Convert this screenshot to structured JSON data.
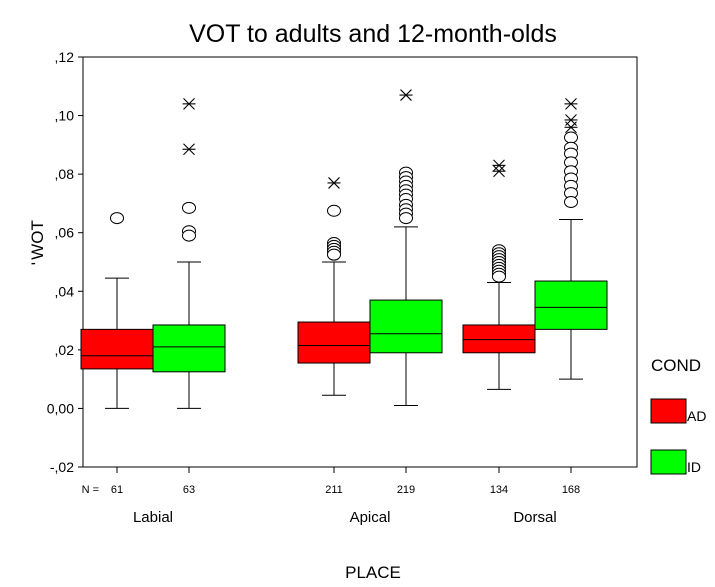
{
  "chart_data": {
    "type": "boxplot",
    "title": "VOT to adults and 12-month-olds",
    "ylabel": "WOT",
    "ylabel_prefix": "'",
    "xlabel": "PLACE",
    "ylim": [
      -0.02,
      0.12
    ],
    "yticks": [
      {
        "value": 0.12,
        "label": ",12"
      },
      {
        "value": 0.1,
        "label": ",10"
      },
      {
        "value": 0.08,
        "label": ",08"
      },
      {
        "value": 0.06,
        "label": ",06"
      },
      {
        "value": 0.04,
        "label": ",04"
      },
      {
        "value": 0.02,
        "label": ",02"
      },
      {
        "value": 0.0,
        "label": "0,00"
      },
      {
        "value": -0.02,
        "label": "-,02"
      }
    ],
    "n_label": "N =",
    "categories": [
      "Labial",
      "Apical",
      "Dorsal"
    ],
    "legend": {
      "title": "COND",
      "position": "right",
      "entries": [
        {
          "label": "AD",
          "color": "#ff0000"
        },
        {
          "label": "ID",
          "color": "#00ff00"
        }
      ]
    },
    "series": [
      {
        "name": "AD",
        "color": "#ff0000",
        "boxes": [
          {
            "category": "Labial",
            "n": "61",
            "min": 0.0,
            "q1": 0.0135,
            "median": 0.018,
            "q3": 0.027,
            "max": 0.0445,
            "outliers": [
              0.065
            ],
            "extremes": []
          },
          {
            "category": "Apical",
            "n": "211",
            "min": 0.0045,
            "q1": 0.0155,
            "median": 0.0215,
            "q3": 0.0295,
            "max": 0.05,
            "outliers": [
              0.0675,
              0.0565,
              0.0555,
              0.0545,
              0.0535,
              0.0525
            ],
            "extremes": [
              0.077
            ]
          },
          {
            "category": "Dorsal",
            "n": "134",
            "min": 0.0065,
            "q1": 0.019,
            "median": 0.0235,
            "q3": 0.0285,
            "max": 0.043,
            "outliers": [
              0.054,
              0.053,
              0.052,
              0.051,
              0.05,
              0.049,
              0.048,
              0.047,
              0.046,
              0.045
            ],
            "extremes": [
              0.083,
              0.081
            ]
          }
        ]
      },
      {
        "name": "ID",
        "color": "#00ff00",
        "boxes": [
          {
            "category": "Labial",
            "n": "63",
            "min": 0.0,
            "q1": 0.0125,
            "median": 0.021,
            "q3": 0.0285,
            "max": 0.05,
            "outliers": [
              0.0685,
              0.0605,
              0.059
            ],
            "extremes": [
              0.104,
              0.0885
            ]
          },
          {
            "category": "Apical",
            "n": "219",
            "min": 0.001,
            "q1": 0.019,
            "median": 0.0255,
            "q3": 0.037,
            "max": 0.062,
            "outliers": [
              0.0805,
              0.079,
              0.0775,
              0.076,
              0.0745,
              0.073,
              0.0715,
              0.0695,
              0.068,
              0.0665,
              0.065
            ],
            "extremes": [
              0.107
            ]
          },
          {
            "category": "Dorsal",
            "n": "168",
            "min": 0.01,
            "q1": 0.027,
            "median": 0.0345,
            "q3": 0.0435,
            "max": 0.0645,
            "outliers": [
              0.0925,
              0.089,
              0.087,
              0.084,
              0.081,
              0.0785,
              0.076,
              0.0735,
              0.0705
            ],
            "extremes": [
              0.104,
              0.0985,
              0.096
            ]
          }
        ]
      }
    ]
  }
}
